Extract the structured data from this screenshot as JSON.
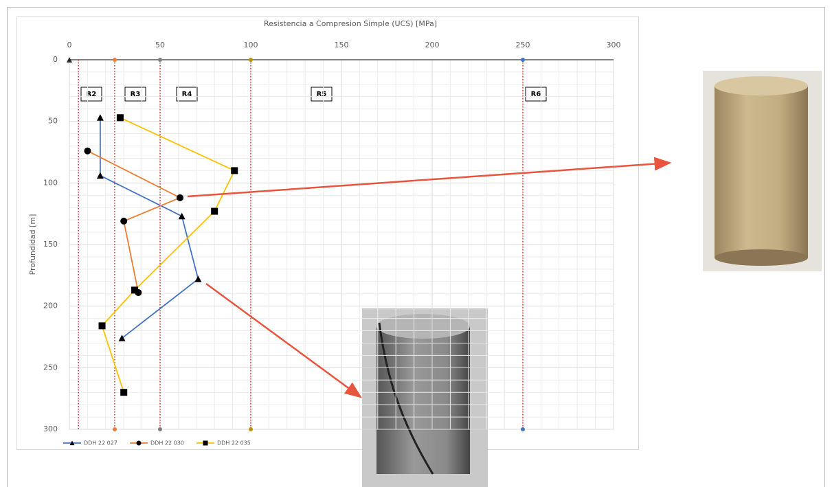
{
  "chart_data": {
    "type": "line",
    "title": "Resistencia a Compresion Simple  (UCS)  [MPa]",
    "y_label": "Profundidad  [m]",
    "xlim": [
      0,
      300
    ],
    "xticks": [
      0,
      50,
      100,
      150,
      200,
      250,
      300
    ],
    "ylim": [
      0,
      300
    ],
    "yticks": [
      0,
      50,
      100,
      150,
      200,
      250,
      300
    ],
    "grid": true,
    "thresholds": [
      {
        "value": 5
      },
      {
        "value": 25,
        "dot": "#ed7d31"
      },
      {
        "value": 50,
        "dot": "#7f7f7f"
      },
      {
        "value": 100,
        "dot": "#bf9000"
      },
      {
        "value": 250,
        "dot": "#4472c4"
      }
    ],
    "zone_labels": [
      "R2",
      "R3",
      "R4",
      "R5",
      "R6"
    ],
    "series": [
      {
        "name": "DDH 22 027",
        "color": "#4472c4",
        "marker": "triangle",
        "x": [
          17,
          17,
          62,
          71,
          29
        ],
        "values": [
          47,
          94,
          127,
          178,
          226
        ]
      },
      {
        "name": "DDH 22 030",
        "color": "#ed7d31",
        "marker": "circle",
        "x": [
          10,
          61,
          30,
          38
        ],
        "values": [
          74,
          112,
          131,
          189
        ]
      },
      {
        "name": "DDH 22 035",
        "color": "#ffc000",
        "marker": "square",
        "x": [
          28,
          91,
          80,
          36,
          18,
          30
        ],
        "values": [
          47,
          90,
          123,
          187,
          216,
          270
        ]
      }
    ]
  }
}
